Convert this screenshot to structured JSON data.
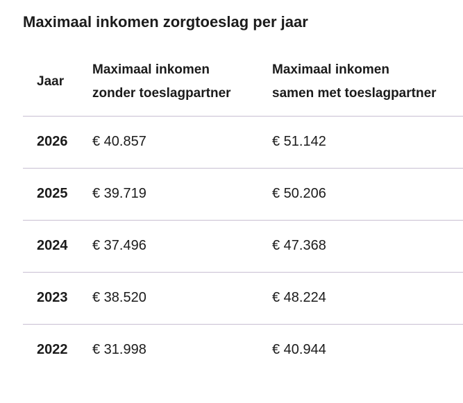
{
  "colors": {
    "text": "#1b1b1b",
    "divider": "#c8bfd2",
    "background": "#ffffff"
  },
  "header_display": {
    "col1": "Jaar",
    "col2": {
      "line1": "Maximaal inkomen",
      "line2": "zonder toeslagpartner"
    },
    "col3": {
      "line1": "Maximaal inkomen",
      "line2": "samen met toeslagpartner"
    }
  },
  "chart_data": {
    "type": "table",
    "title": "Maximaal inkomen zorgtoeslag per jaar",
    "columns": [
      "Jaar",
      "Maximaal inkomen zonder toeslagpartner",
      "Maximaal inkomen samen met toeslagpartner"
    ],
    "rows": [
      [
        "2026",
        "€ 40.857",
        "€ 51.142"
      ],
      [
        "2025",
        "€ 39.719",
        "€ 50.206"
      ],
      [
        "2024",
        "€ 37.496",
        "€ 47.368"
      ],
      [
        "2023",
        "€ 38.520",
        "€ 48.224"
      ],
      [
        "2022",
        "€ 31.998",
        "€ 40.944"
      ]
    ],
    "values_numeric": {
      "max_inkomen_zonder_toeslagpartner_eur": [
        40857,
        39719,
        37496,
        38520,
        31998
      ],
      "max_inkomen_samen_met_toeslagpartner_eur": [
        51142,
        50206,
        47368,
        48224,
        40944
      ]
    }
  }
}
